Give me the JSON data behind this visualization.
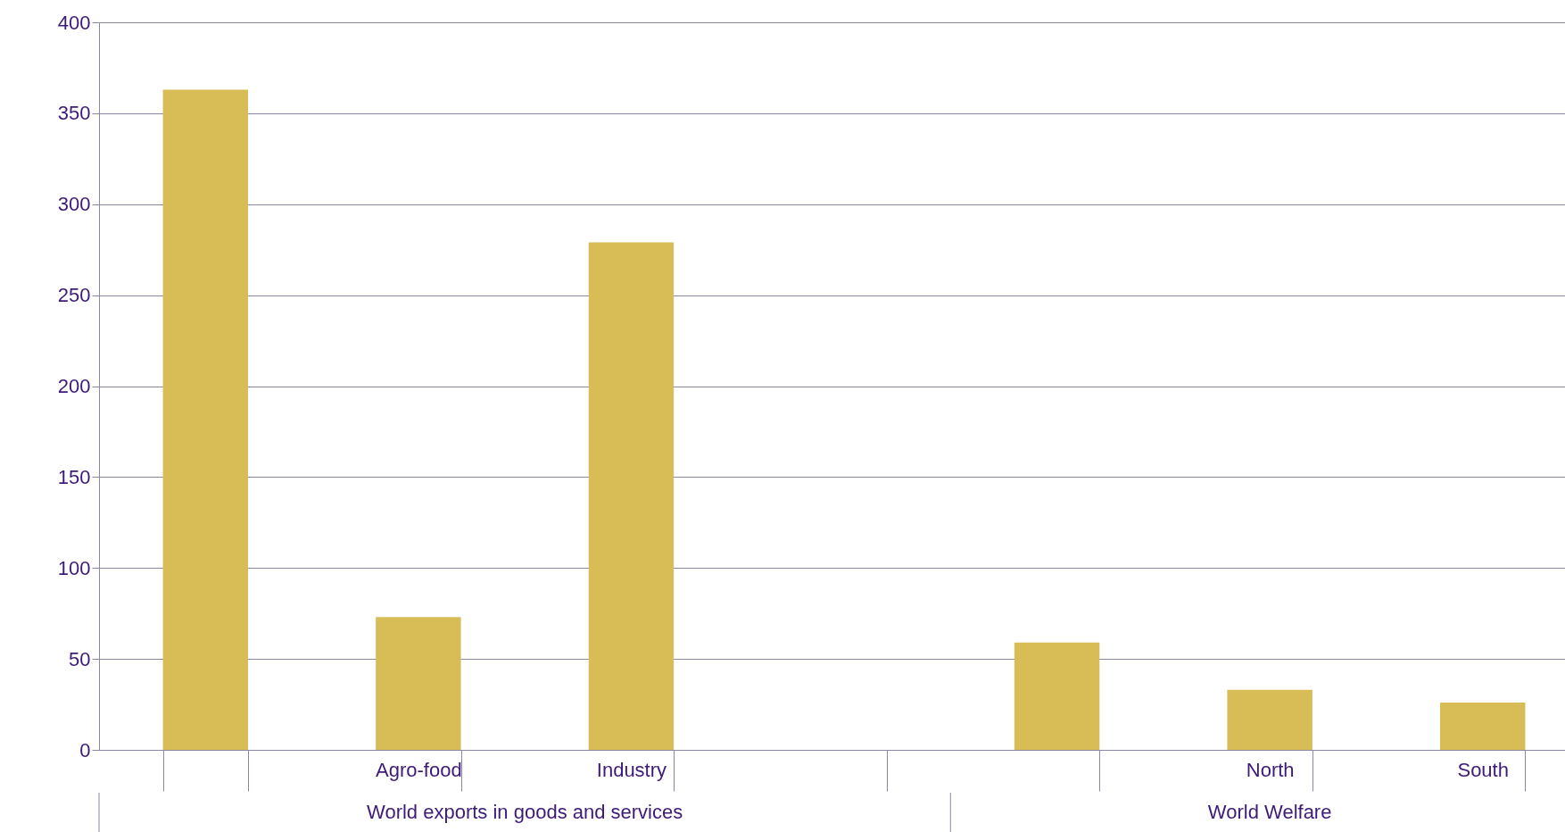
{
  "chart_data": {
    "type": "bar",
    "categories": [
      null,
      "Agro-food",
      "Industry",
      null,
      null,
      "North",
      "South"
    ],
    "values": [
      363,
      73,
      279,
      null,
      59,
      33,
      26
    ],
    "color": "#d8bc56",
    "ylim": [
      0,
      400
    ],
    "yticks": [
      0,
      50,
      100,
      150,
      200,
      250,
      300,
      350,
      400
    ],
    "grid": true,
    "annotations": [
      "World exports in goods and services",
      "World Welfare"
    ]
  }
}
